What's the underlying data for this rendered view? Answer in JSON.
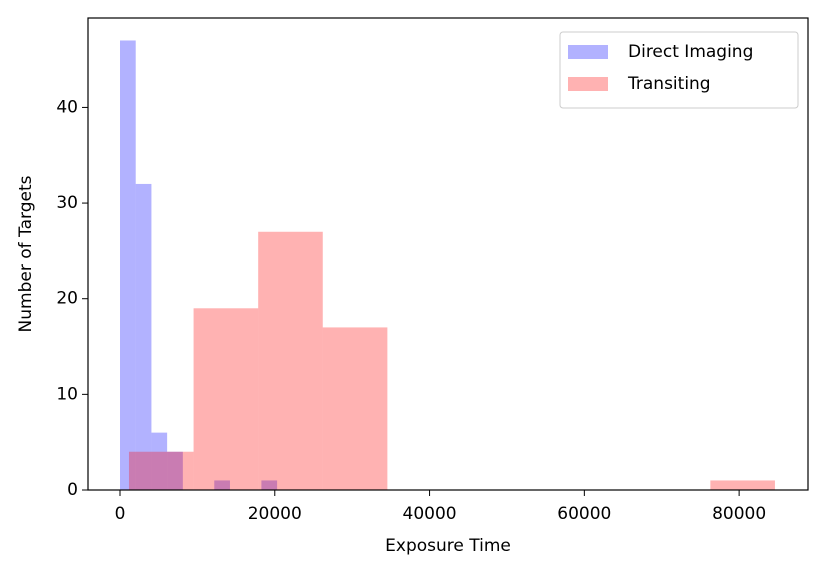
{
  "chart_data": {
    "type": "histogram",
    "xlabel": "Exposure Time",
    "ylabel": "Number of Targets",
    "xlim": [
      -4135,
      88900
    ],
    "ylim": [
      0,
      49.35
    ],
    "xticks": [
      0,
      20000,
      40000,
      60000,
      80000
    ],
    "yticks": [
      0,
      10,
      20,
      30,
      40
    ],
    "legend": "upper right",
    "series": [
      {
        "name": "Direct Imaging",
        "color": "#0000ff",
        "bins": [
          0,
          2030,
          4060,
          6090,
          8120,
          10150,
          12180,
          14210,
          16240,
          18270,
          20300
        ],
        "values": [
          47,
          32,
          6,
          4,
          0,
          0,
          1,
          0,
          0,
          1
        ]
      },
      {
        "name": "Transiting",
        "color": "#ff0000",
        "bins": [
          1160,
          9507,
          17854,
          26201,
          34548,
          42895,
          51242,
          59589,
          67936,
          76283,
          84630
        ],
        "values": [
          4,
          19,
          27,
          17,
          0,
          0,
          0,
          0,
          0,
          1
        ]
      }
    ]
  }
}
